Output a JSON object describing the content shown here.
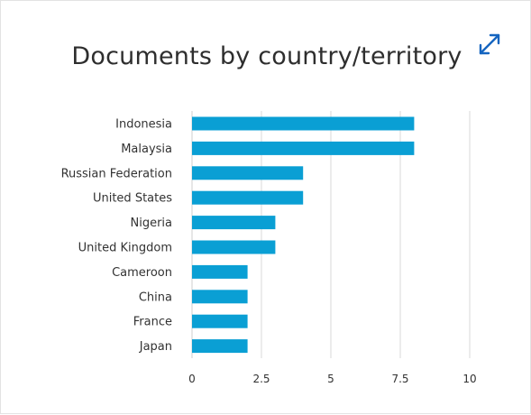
{
  "header": {
    "title": "Documents by country/territory",
    "expand_icon": "expand-arrows-icon"
  },
  "colors": {
    "bar": "#0a9fd4",
    "grid": "#d9d9d9",
    "accent": "#1565c0"
  },
  "chart_data": {
    "type": "bar",
    "orientation": "horizontal",
    "title": "Documents by country/territory",
    "xlabel": "",
    "ylabel": "",
    "categories": [
      "Indonesia",
      "Malaysia",
      "Russian Federation",
      "United States",
      "Nigeria",
      "United Kingdom",
      "Cameroon",
      "China",
      "France",
      "Japan"
    ],
    "values": [
      8,
      8,
      4,
      4,
      3,
      3,
      2,
      2,
      2,
      2
    ],
    "xlim": [
      0,
      10
    ],
    "xticks": [
      0,
      2.5,
      5,
      7.5,
      10
    ],
    "xtick_labels": [
      "0",
      "2.5",
      "5",
      "7.5",
      "10"
    ],
    "grid": true,
    "legend": "none"
  }
}
